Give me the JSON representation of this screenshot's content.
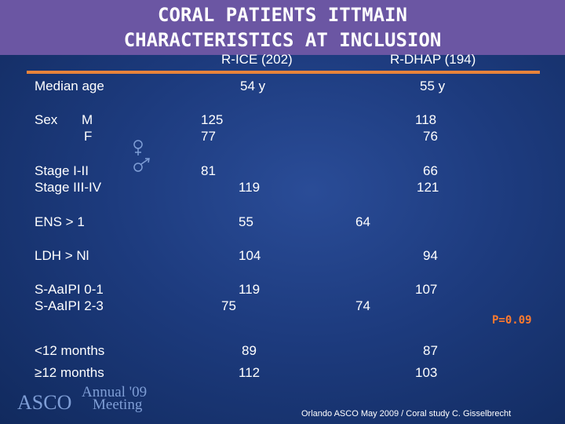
{
  "slide": {
    "title_line1": "CORAL PATIENTS ITTMAIN",
    "title_line2": "CHARACTERISTICS AT INCLUSION"
  },
  "columns": {
    "rice": "R-ICE (202)",
    "rdhap": "R-DHAP  (194)"
  },
  "rows": {
    "median_age": {
      "label": "Median age",
      "rice": "54  y",
      "rdhap": "55  y"
    },
    "sex": {
      "label": "Sex",
      "m_label": "M",
      "f_label": "F",
      "rice_m": "125",
      "rice_f": "77",
      "rdhap_m": "118",
      "rdhap_f": "76"
    },
    "stage": {
      "label1": "Stage I-II",
      "label2": "Stage III-IV",
      "rice1": "81",
      "rice2": "119",
      "rdhap1": "66",
      "rdhap2": "121"
    },
    "ens": {
      "label": "ENS > 1",
      "rice": "55",
      "rdhap": "64"
    },
    "ldh": {
      "label": "LDH > Nl",
      "rice": "104",
      "rdhap": "94"
    },
    "aaipi": {
      "label1": "S-AaIPI 0-1",
      "label2": "S-AaIPI 2-3",
      "rice1": "119",
      "rice2": "75",
      "rdhap1": "107",
      "rdhap2": "74"
    },
    "months": {
      "label1": "<12 months",
      "label2": "≥12 months",
      "rice1": "89",
      "rice2": "112",
      "rdhap1": "87",
      "rdhap2": "103"
    }
  },
  "p_value": "P=0.09",
  "logo": {
    "org": "ASCO",
    "line1": "Annual '09",
    "line2": "Meeting"
  },
  "footer": "Orlando ASCO May 2009 / Coral study  C. Gisselbrecht",
  "colors": {
    "title_bar": "#6b56a3",
    "accent_line": "#e8833a",
    "p_value": "#ff7a2e"
  }
}
